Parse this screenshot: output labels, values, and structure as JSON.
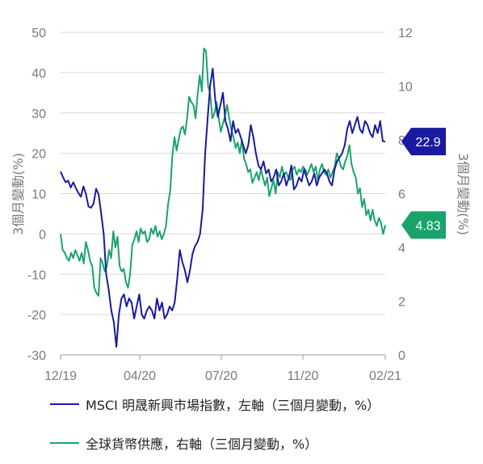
{
  "chart_data": {
    "type": "line",
    "left_axis": {
      "label": "3個月變動(%)",
      "ticks": [
        "50",
        "40",
        "30",
        "20",
        "10",
        "0",
        "-10",
        "-20",
        "-30"
      ],
      "range": [
        -30,
        50
      ]
    },
    "right_axis": {
      "label": "3個月變動(%)",
      "ticks": [
        "12",
        "10",
        "8",
        "6",
        "4",
        "2",
        "0"
      ],
      "range": [
        0,
        12
      ]
    },
    "x_ticks": [
      "12/19",
      "04/20",
      "07/20",
      "11/20",
      "02/21"
    ],
    "series": [
      {
        "name": "MSCI 明晟新興市場指數，左軸（三個月變動，%）",
        "axis": "left",
        "color": "#1a1aa0",
        "values": [
          15.5,
          14,
          12.8,
          13.2,
          11.5,
          12.8,
          11.4,
          10.2,
          9.2,
          11.8,
          9.9,
          6.8,
          6.5,
          7.5,
          11.2,
          9.8,
          5,
          0,
          -10,
          -14,
          -19,
          -22,
          -28,
          -20,
          -16,
          -15,
          -18,
          -16,
          -17,
          -21,
          -18,
          -15,
          -20,
          -21,
          -19,
          -18,
          -19,
          -21,
          -16,
          -19,
          -17,
          -21,
          -20,
          -18,
          -19,
          -17,
          -11,
          -4,
          -7,
          -9,
          -12,
          -9,
          -5,
          -3,
          -2,
          0,
          6,
          20,
          29,
          37,
          41,
          33,
          29,
          32,
          35,
          28,
          26,
          23,
          28,
          25,
          26,
          24,
          22,
          20,
          22,
          27,
          24,
          20,
          17,
          16,
          18,
          15,
          16,
          13,
          14,
          16,
          12,
          13,
          15,
          12,
          14,
          17,
          11,
          12,
          14,
          13,
          16,
          14,
          12,
          13,
          15,
          12,
          14,
          15,
          16,
          15,
          13,
          12,
          16,
          18,
          19,
          20,
          22,
          26,
          28,
          25,
          27,
          29,
          26,
          25,
          28,
          27,
          25,
          24,
          27,
          25,
          28,
          23,
          22.9
        ],
        "last_label": "22.9"
      },
      {
        "name": "全球貨幣供應，右軸（三個月變動，%）",
        "axis": "right",
        "color": "#1aa36b",
        "values": [
          4.5,
          3.9,
          3.8,
          3.6,
          3.5,
          3.8,
          3.6,
          3.9,
          3.7,
          3.5,
          3.8,
          3.4,
          4.2,
          3.9,
          3.5,
          3.3,
          2.5,
          2.3,
          2.2,
          3.6,
          3.4,
          3.1,
          3.3,
          3.9,
          3.6,
          4.6,
          4.0,
          4.4,
          3.3,
          3.1,
          3.2,
          2.7,
          2.5,
          3.0,
          4.1,
          4.3,
          4.6,
          4.2,
          4.7,
          4.5,
          4.6,
          4.2,
          4.3,
          4.7,
          4.5,
          4.8,
          4.4,
          4.6,
          4.3,
          4.5,
          4.8,
          5.6,
          6.1,
          7.4,
          8.1,
          7.6,
          8.0,
          8.4,
          8.5,
          8.2,
          8.8,
          9.6,
          9.4,
          9.3,
          8.8,
          9.7,
          10.4,
          9.8,
          11.4,
          11.3,
          10.0,
          9.7,
          8.8,
          9.0,
          9.4,
          8.8,
          8.3,
          8.6,
          8.9,
          9.3,
          8.8,
          8.4,
          8.1,
          7.7,
          7.9,
          7.5,
          8.0,
          7.3,
          7.1,
          6.8,
          6.9,
          6.4,
          6.6,
          6.8,
          6.5,
          6.9,
          6.6,
          6.3,
          6.6,
          5.9,
          6.2,
          6.5,
          6.0,
          6.8,
          6.6,
          7.0,
          6.7,
          6.8,
          6.6,
          6.5,
          6.9,
          7.0,
          6.7,
          6.9,
          6.8,
          7.0,
          6.9,
          6.7,
          6.9,
          7.1,
          6.8,
          7.0,
          6.5,
          6.9,
          7.1,
          6.8,
          6.7,
          6.9,
          6.6,
          6.8,
          7.0,
          7.5,
          7.3,
          7.0,
          6.9,
          7.2,
          7.4,
          7.8,
          7.1,
          6.8,
          6.6,
          6.0,
          6.2,
          5.5,
          5.8,
          5.2,
          5.4,
          5.0,
          5.4,
          5.0,
          4.8,
          5.1,
          4.9,
          4.5,
          4.83
        ],
        "last_label": "4.83"
      }
    ]
  }
}
